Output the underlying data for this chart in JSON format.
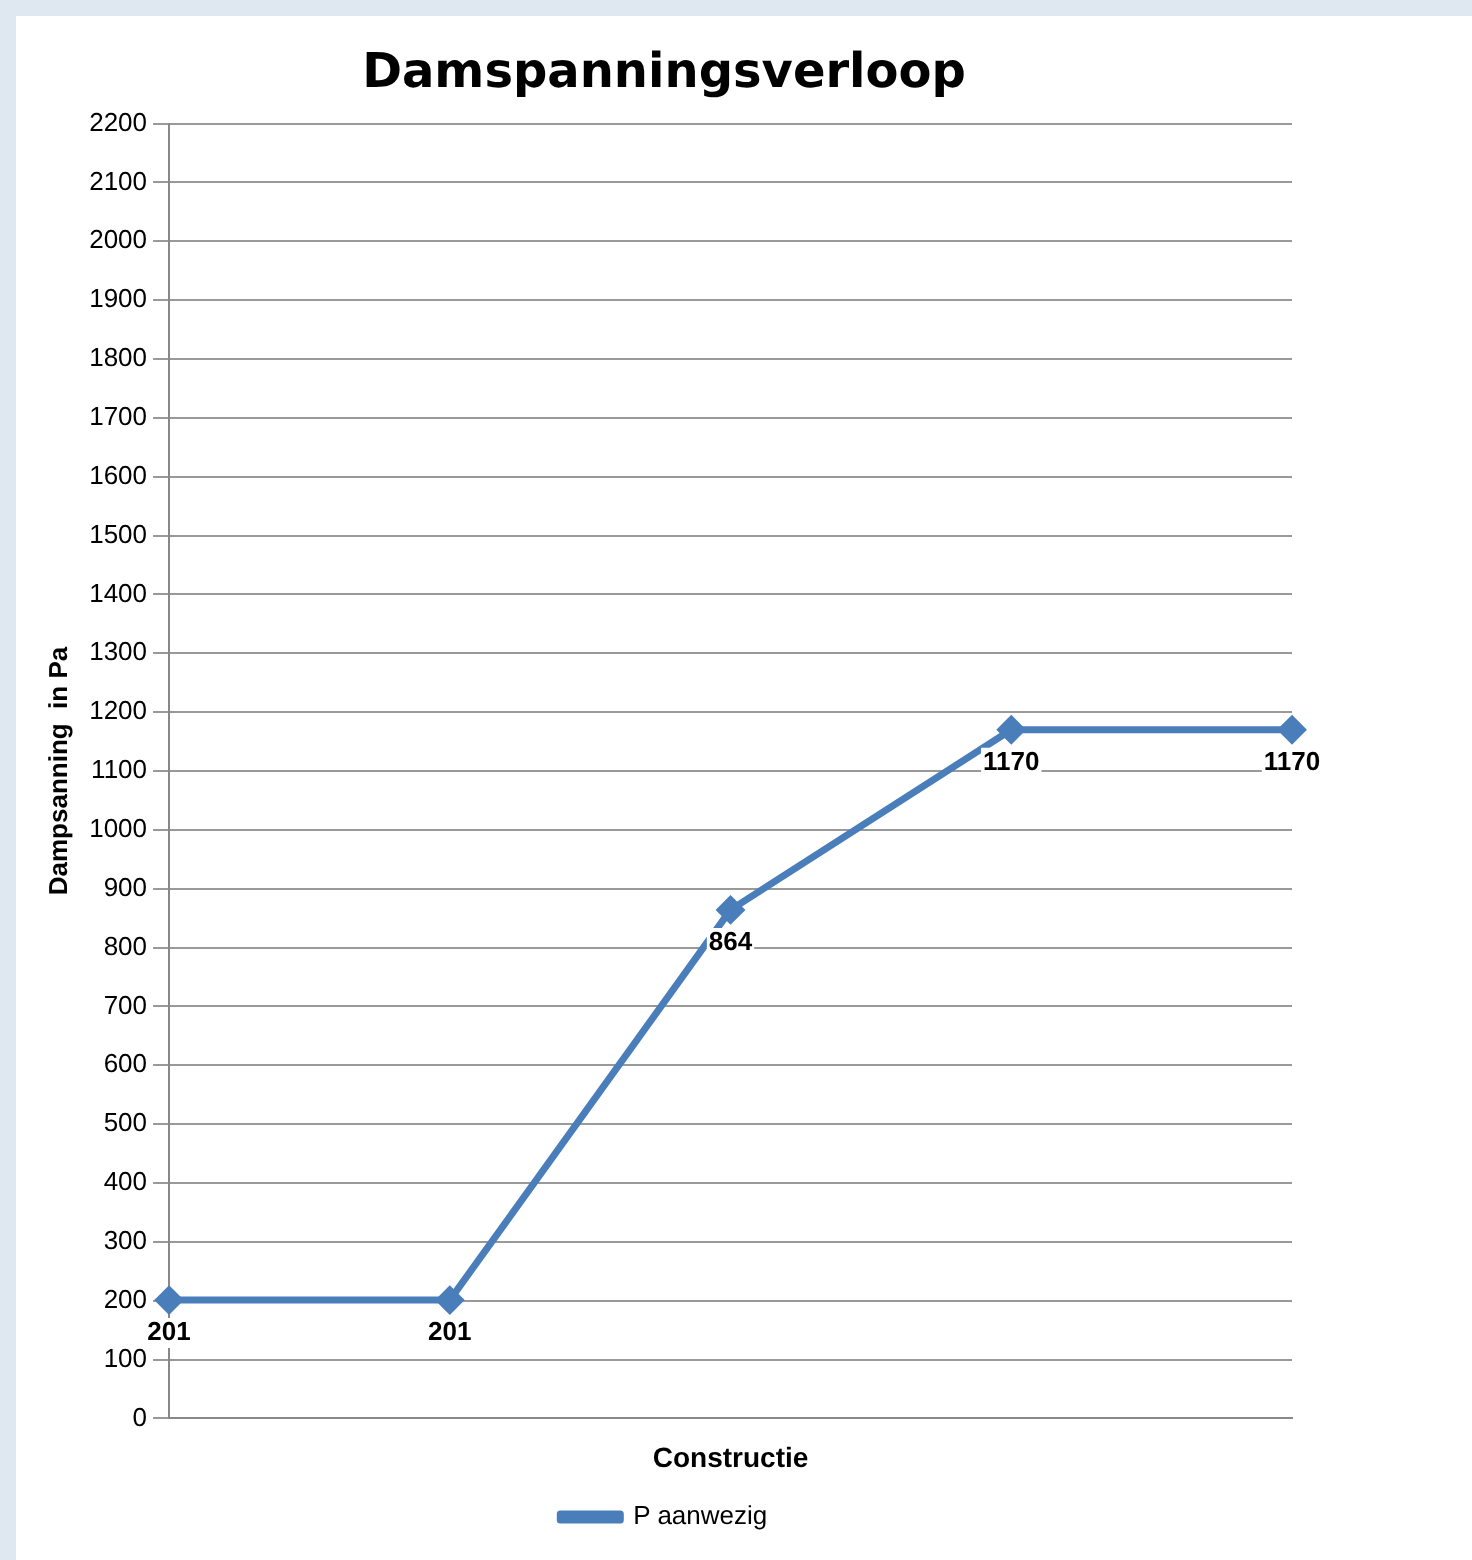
{
  "chart_data": {
    "type": "line",
    "title": "Damspanningsverloop",
    "xlabel": "Constructie",
    "ylabel": "Dampsanning  in Pa",
    "categories": [
      null,
      null,
      null,
      null,
      null
    ],
    "series": [
      {
        "name": "P aanwezig",
        "color": "#4a7ebb",
        "values": [
          201,
          201,
          864,
          1170,
          1170
        ]
      }
    ],
    "ylim": [
      0,
      2200
    ],
    "yticks": [
      0,
      100,
      200,
      300,
      400,
      500,
      600,
      700,
      800,
      900,
      1000,
      1100,
      1200,
      1300,
      1400,
      1500,
      1600,
      1700,
      1800,
      1900,
      2000,
      2100,
      2200
    ],
    "grid": "y",
    "legend": "bottom",
    "marker": "diamond",
    "line_style": "solid",
    "data_labels": true,
    "tick_labels": "y"
  }
}
